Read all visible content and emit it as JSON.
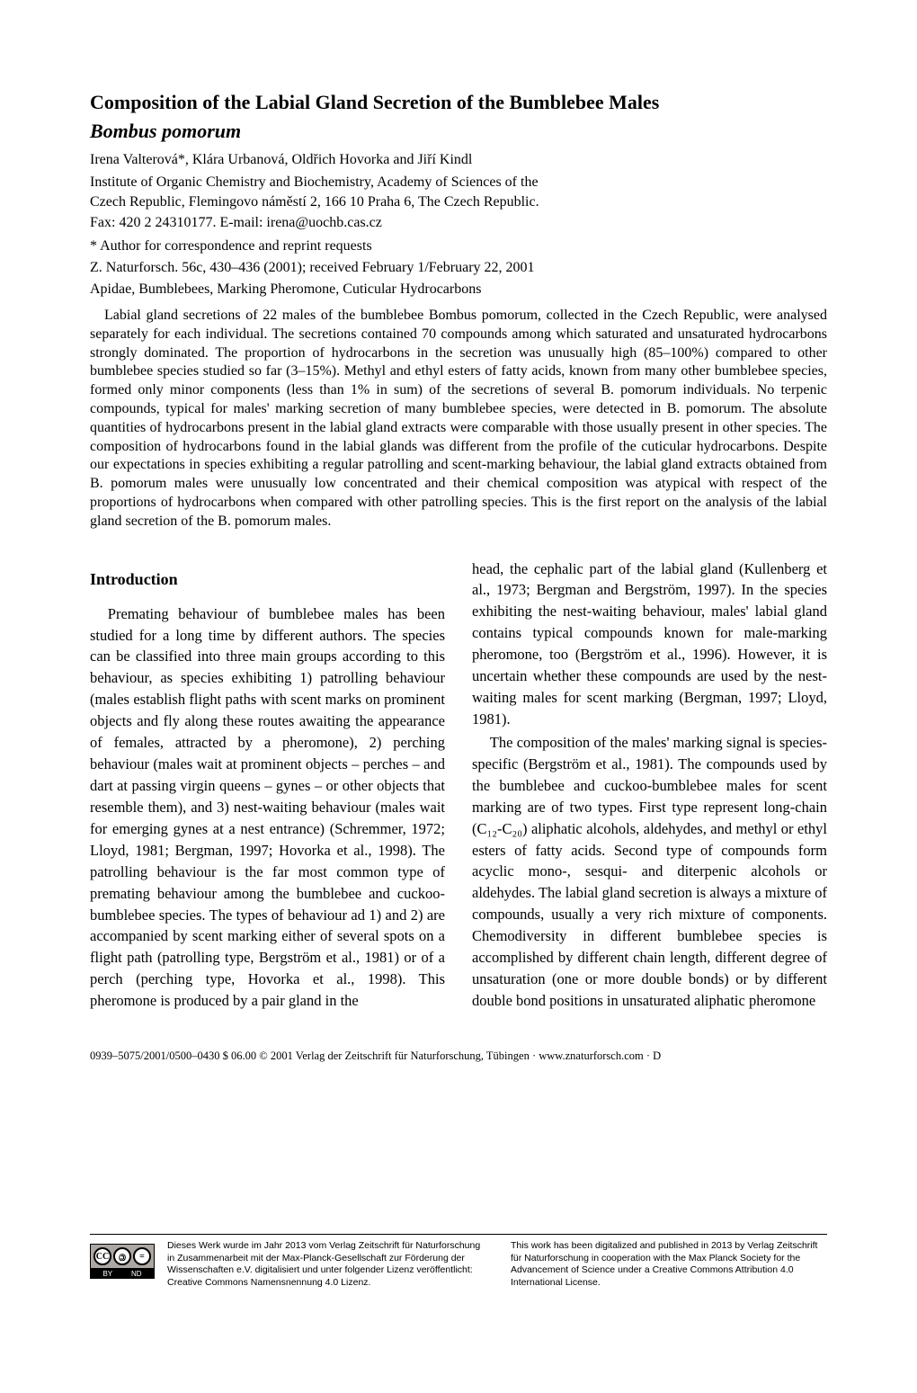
{
  "title": "Composition of the Labial Gland Secretion of the Bumblebee Males",
  "species_title": "Bombus pomorum",
  "authors": "Irena Valterová*, Klára Urbanová, Oldřich Hovorka and Jiří Kindl",
  "affiliation_line1": "Institute of Organic Chemistry and Biochemistry, Academy of Sciences of the",
  "affiliation_line2": "Czech Republic, Flemingovo náměstí 2, 166 10 Praha 6, The Czech Republic.",
  "affiliation_line3": "Fax: 420 2 24310177. E-mail: irena@uochb.cas.cz",
  "correspondence": "* Author for correspondence and reprint requests",
  "citation": "Z. Naturforsch. 56c, 430–436 (2001); received February 1/February 22, 2001",
  "keywords": "Apidae, Bumblebees, Marking Pheromone, Cuticular Hydrocarbons",
  "abstract": "Labial gland secretions of 22 males of the bumblebee Bombus pomorum, collected in the Czech Republic, were analysed separately for each individual. The secretions contained 70 compounds among which saturated and unsaturated hydrocarbons strongly dominated. The proportion of hydrocarbons in the secretion was unusually high (85–100%) compared to other bumblebee species studied so far (3–15%). Methyl and ethyl esters of fatty acids, known from many other bumblebee species, formed only minor components (less than 1% in sum) of the secretions of several B. pomorum individuals. No terpenic compounds, typical for males' marking secretion of many bumblebee species, were detected in B. pomorum. The absolute quantities of hydrocarbons present in the labial gland extracts were comparable with those usually present in other species. The composition of hydrocarbons found in the labial glands was different from the profile of the cuticular hydrocarbons. Despite our expectations in species exhibiting a regular patrolling and scent-marking behaviour, the labial gland extracts obtained from B. pomorum males were unusually low concentrated and their chemical composition was atypical with respect of the proportions of hydrocarbons when compared with other patrolling species. This is the first report on the analysis of the labial gland secretion of the B. pomorum males.",
  "section_heading": "Introduction",
  "col1_p1": "Premating behaviour of bumblebee males has been studied for a long time by different authors. The species can be classified into three main groups according to this behaviour, as species exhibiting 1) patrolling behaviour (males establish flight paths with scent marks on prominent objects and fly along these routes awaiting the appearance of females, attracted by a pheromone), 2) perching behaviour (males wait at prominent objects – perches – and dart at passing virgin queens – gynes – or other objects that resemble them), and 3) nest-waiting behaviour (males wait for emerging gynes at a nest entrance) (Schremmer, 1972; Lloyd, 1981; Bergman, 1997; Hovorka et al., 1998). The patrolling behaviour is the far most common type of premating behaviour among the bumblebee and cuckoo-bumblebee species. The types of behaviour ad 1) and 2) are accompanied by scent marking either of several spots on a flight path (patrolling type, Bergström et al., 1981) or of a perch (perching type, Hovorka et al., 1998). This pheromone is produced by a pair gland in the",
  "col2_p1": "head, the cephalic part of the labial gland (Kullenberg et al., 1973; Bergman and Bergström, 1997). In the species exhibiting the nest-waiting behaviour, males' labial gland contains typical compounds known for male-marking pheromone, too (Bergström et al., 1996). However, it is uncertain whether these compounds are used by the nest-waiting males for scent marking (Bergman, 1997; Lloyd, 1981).",
  "col2_p2": "The composition of the males' marking signal is species-specific (Bergström et al., 1981). The compounds used by the bumblebee and cuckoo-bumblebee males for scent marking are of two types. First type represent long-chain (C₁₂-C₂₀) aliphatic alcohols, aldehydes, and methyl or ethyl esters of fatty acids. Second type of compounds form acyclic mono-, sesqui- and diterpenic alcohols or aldehydes. The labial gland secretion is always a mixture of compounds, usually a very rich mixture of components. Chemodiversity in different bumblebee species is accomplished by different chain length, different degree of unsaturation (one or more double bonds) or by different double bond positions in unsaturated aliphatic pheromone",
  "footer_citation": "0939–5075/2001/0500–0430 $ 06.00   © 2001 Verlag der Zeitschrift für Naturforschung, Tübingen · www.znaturforsch.com ·    D",
  "license_de": "Dieses Werk wurde im Jahr 2013 vom Verlag Zeitschrift für Naturforschung in Zusammenarbeit mit der Max-Planck-Gesellschaft zur Förderung der Wissenschaften e.V. digitalisiert und unter folgender Lizenz veröffentlicht: Creative Commons Namensnennung 4.0 Lizenz.",
  "license_en": "This work has been digitalized and published in 2013 by Verlag Zeitschrift für Naturforschung in cooperation with the Max Planck Society for the Advancement of Science under a Creative Commons Attribution 4.0 International License.",
  "cc_by": "BY",
  "cc_nd": "ND",
  "cc_cc": "CC"
}
